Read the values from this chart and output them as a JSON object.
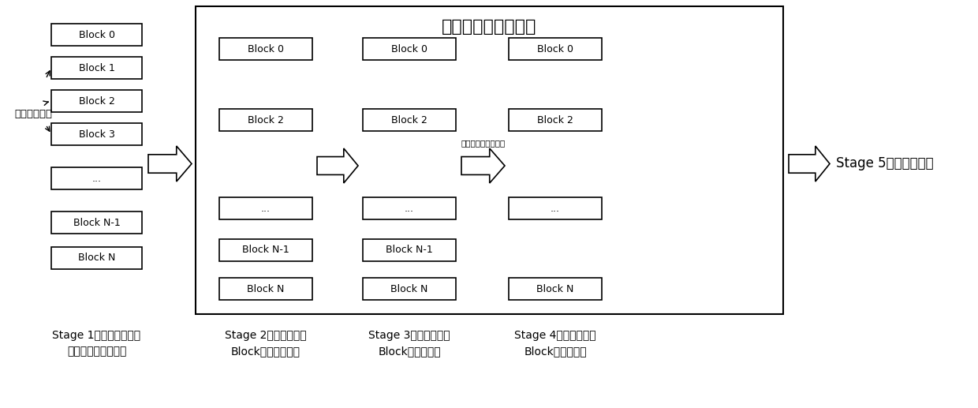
{
  "title": "循环该流程指定轮数",
  "bg_color": "#ffffff",
  "box_color": "#ffffff",
  "box_edge": "#000000",
  "stage1_blocks": [
    "Block 0",
    "Block 1",
    "Block 2",
    "Block 3",
    "...",
    "Block N-1",
    "Block N"
  ],
  "stage2_blocks": [
    "Block 0",
    "Block 2",
    "...",
    "Block N-1",
    "Block N"
  ],
  "stage3_blocks": [
    "Block 0",
    "Block 2",
    "...",
    "Block N-1",
    "Block N"
  ],
  "stage4_blocks": [
    "Block 0",
    "Block 2",
    "...",
    "Block N"
  ],
  "stage1_label_line1": "Stage 1：根据颗粒提供",
  "stage1_label_line2": "的坏块标志扫描坏块",
  "stage2_label_line1": "Stage 2：针对剩余的",
  "stage2_label_line2": "Block进行擦除操作",
  "stage3_label_line1": "Stage 3：针对剩余的",
  "stage3_label_line2": "Block进行写操作",
  "stage4_label_line1": "Stage 4：针对剩余的",
  "stage4_label_line2": "Block进行读操作",
  "stage5_label": "Stage 5：生成坏块表",
  "left_label": "颗粒出厂坏块",
  "arrow_label": "前置、温度变换加速",
  "title_fontsize": 16,
  "block_fontsize": 9,
  "label_fontsize": 10,
  "stage5_fontsize": 12
}
